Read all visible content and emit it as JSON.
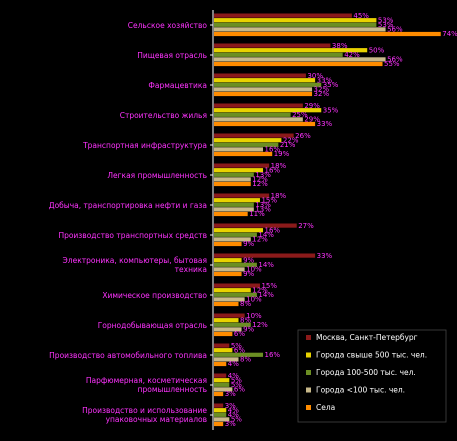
{
  "chart_data": {
    "type": "bar",
    "orientation": "horizontal",
    "categories": [
      "Сельское хозяйство",
      "Пищевая отрасль",
      "Фармацевтика",
      "Строительство жилья",
      "Транспортная инфраструктура",
      "Легкая промышленность",
      "Добыча, транспортировка нефти и газа",
      "Производство транспортных средств",
      "Электроника, компьютеры, бытовая техника",
      "Химическое производство",
      "Горнодобывающая отрасль",
      "Производство автомобильного топлива",
      "Парфюмерная, косметическая промышленность",
      "Производство и использование упаковочных материалов"
    ],
    "series": [
      {
        "name": "Москва, Санкт-Петербург",
        "color": "#8b1a1a",
        "values": [
          45,
          38,
          30,
          29,
          26,
          18,
          18,
          27,
          33,
          15,
          10,
          5,
          4,
          3
        ]
      },
      {
        "name": "Города свыше 500 тыс. чел.",
        "color": "#e8d200",
        "values": [
          53,
          50,
          33,
          35,
          22,
          16,
          15,
          16,
          9,
          12,
          8,
          6,
          5,
          4
        ]
      },
      {
        "name": "Города 100-500 тыс. чел.",
        "color": "#6b8e23",
        "values": [
          53,
          42,
          35,
          25,
          21,
          13,
          13,
          14,
          14,
          14,
          12,
          16,
          5,
          4
        ]
      },
      {
        "name": "Города <100 тыс. чел.",
        "color": "#c8b98a",
        "values": [
          56,
          56,
          32,
          29,
          16,
          12,
          13,
          12,
          10,
          10,
          9,
          8,
          6,
          5
        ]
      },
      {
        "name": "Села",
        "color": "#ff8c00",
        "values": [
          74,
          55,
          32,
          33,
          19,
          12,
          11,
          9,
          9,
          8,
          6,
          4,
          3,
          3
        ]
      }
    ],
    "value_labels": [
      [
        "45%",
        "53%",
        "53%",
        "56%",
        "74%"
      ],
      [
        "38%",
        "50%",
        "42%",
        "56%",
        "55%"
      ],
      [
        "30%",
        "33%",
        "35%",
        "32%",
        "32%"
      ],
      [
        "29%",
        "35%",
        "25%",
        "29%",
        "33%"
      ],
      [
        "26%",
        "22%",
        "21%",
        "16%",
        "19%"
      ],
      [
        "18%",
        "16%",
        "13%",
        "12%",
        "12%"
      ],
      [
        "18%",
        "15%",
        "13%",
        "13%",
        "11%"
      ],
      [
        "27%",
        "16%",
        "14%",
        "12%",
        "9%"
      ],
      [
        "33%",
        "9%",
        "14%",
        "10%",
        "9%"
      ],
      [
        "15%",
        "12%",
        "14%",
        "10%",
        "8%"
      ],
      [
        "10%",
        "8%",
        "12%",
        "9%",
        "6%"
      ],
      [
        "5%",
        "6%",
        "16%",
        "8%",
        "4%"
      ],
      [
        "4%",
        "5%",
        "5%",
        "6%",
        "3%"
      ],
      [
        "3%",
        "4%",
        "4%",
        "5%",
        "3%"
      ]
    ],
    "legend_position": "bottom-right",
    "xlim": [
      0,
      80
    ],
    "grid": false,
    "background": "#000000",
    "label_color": "#ff33ff",
    "axis_color": "#ffffff"
  }
}
